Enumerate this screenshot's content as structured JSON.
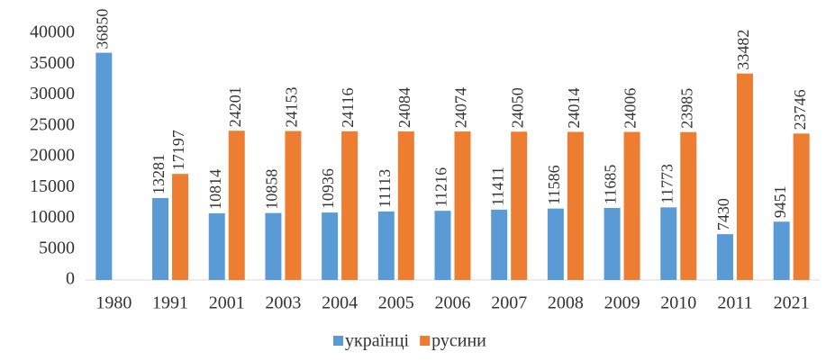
{
  "chart_data": {
    "type": "bar",
    "categories": [
      "1980",
      "1991",
      "2001",
      "2003",
      "2004",
      "2005",
      "2006",
      "2007",
      "2008",
      "2009",
      "2010",
      "2011",
      "2021"
    ],
    "series": [
      {
        "name": "українці",
        "color": "#5b9bd5",
        "values": [
          36850,
          13281,
          10814,
          10858,
          10936,
          11113,
          11216,
          11411,
          11586,
          11685,
          11773,
          7430,
          9451
        ]
      },
      {
        "name": "русини",
        "color": "#ed7d31",
        "values": [
          null,
          17197,
          24201,
          24153,
          24116,
          24084,
          24074,
          24050,
          24014,
          24006,
          23985,
          33482,
          23746
        ]
      }
    ],
    "ylim": [
      0,
      40000
    ],
    "yticks": [
      0,
      5000,
      10000,
      15000,
      20000,
      25000,
      30000,
      35000,
      40000
    ],
    "grid": false,
    "legend": "bottom"
  }
}
